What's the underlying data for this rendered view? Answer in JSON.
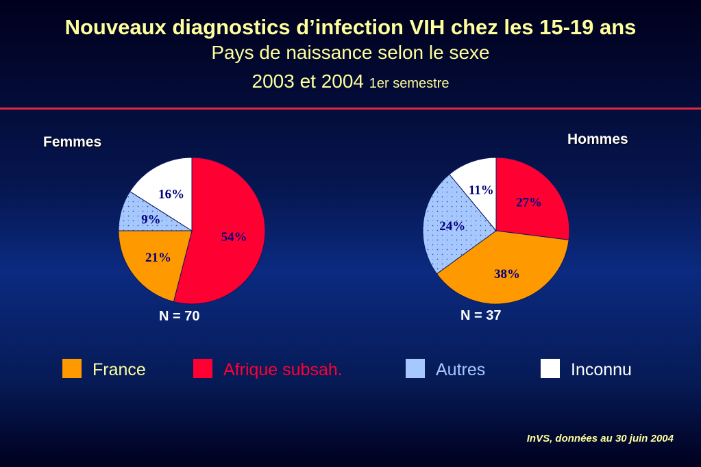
{
  "title": "Nouveaux diagnostics d’infection VIH chez les 15-19 ans",
  "subtitle": "Pays de naissance selon le sexe",
  "years_main": "2003 et 2004",
  "years_small": "1er semestre",
  "source": "InVS, données au 30 juin 2004",
  "colors": {
    "France": "#ff9900",
    "Afrique subsah.": "#ff0033",
    "Autres": "#a6c8ff",
    "Inconnu": "#ffffff",
    "label_text": "#00007a",
    "accent_rule": "#e0293f",
    "title_text": "#ffff9c"
  },
  "legend": [
    {
      "label": "France",
      "color": "#ff9900",
      "text_color": "#ffff9c"
    },
    {
      "label": "Afrique subsah.",
      "color": "#ff0033",
      "text_color": "#ff0033"
    },
    {
      "label": "Autres",
      "color": "#a6c8ff",
      "text_color": "#a6c8ff"
    },
    {
      "label": "Inconnu",
      "color": "#ffffff",
      "text_color": "#ffffff"
    }
  ],
  "chart_data": [
    {
      "type": "pie",
      "title": "Femmes",
      "n_label": "N = 70",
      "slices": [
        {
          "category": "Afrique subsah.",
          "value": 54,
          "label": "54%"
        },
        {
          "category": "France",
          "value": 21,
          "label": "21%"
        },
        {
          "category": "Autres",
          "value": 9,
          "label": "9%"
        },
        {
          "category": "Inconnu",
          "value": 16,
          "label": "16%"
        }
      ]
    },
    {
      "type": "pie",
      "title": "Hommes",
      "n_label": "N = 37",
      "slices": [
        {
          "category": "Afrique subsah.",
          "value": 27,
          "label": "27%"
        },
        {
          "category": "France",
          "value": 38,
          "label": "38%"
        },
        {
          "category": "Autres",
          "value": 24,
          "label": "24%"
        },
        {
          "category": "Inconnu",
          "value": 11,
          "label": "11%"
        }
      ]
    }
  ]
}
